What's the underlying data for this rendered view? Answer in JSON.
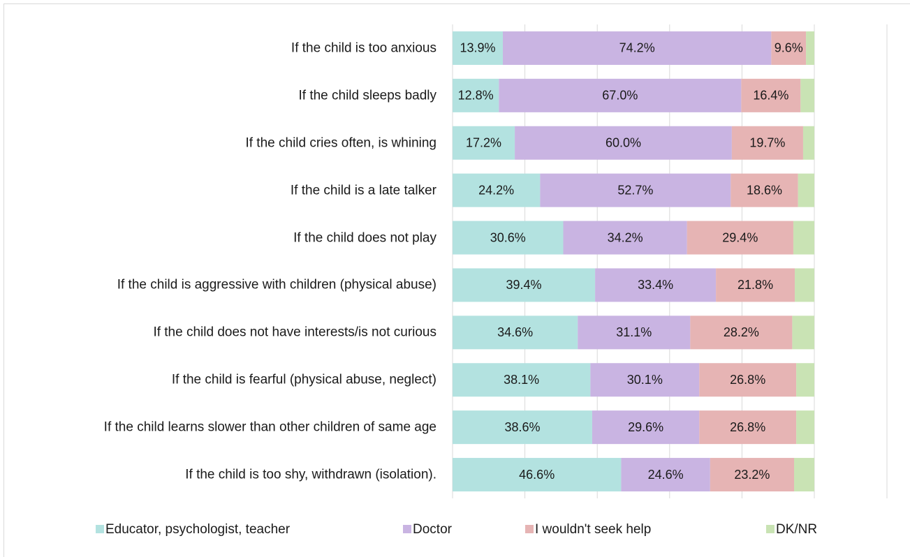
{
  "chart_data": {
    "type": "stacked-bar-horizontal",
    "categories": [
      "If the child is too anxious",
      "If the child sleeps badly",
      "If the child cries often, is whining",
      "If the child is a late talker",
      "If the child does not play",
      "If the child is aggressive with children (physical abuse)",
      "If the child does not have interests/is not curious",
      "If the child is fearful (physical abuse, neglect)",
      "If the child learns slower than other children of same age",
      "If the child is too shy, withdrawn (isolation)."
    ],
    "series": [
      {
        "name": "Educator, psychologist, teacher",
        "color": "#b3e2e0",
        "values": [
          13.9,
          12.8,
          17.2,
          24.2,
          30.6,
          39.4,
          34.6,
          38.1,
          38.6,
          46.6
        ],
        "value_labels": [
          "13.9%",
          "12.8%",
          "17.2%",
          "24.2%",
          "30.6%",
          "39.4%",
          "34.6%",
          "38.1%",
          "38.6%",
          "46.6%"
        ]
      },
      {
        "name": "Doctor",
        "color": "#c9b4e2",
        "values": [
          74.2,
          67.0,
          60.0,
          52.7,
          34.2,
          33.4,
          31.1,
          30.1,
          29.6,
          24.6
        ],
        "value_labels": [
          "74.2%",
          "67.0%",
          "60.0%",
          "52.7%",
          "34.2%",
          "33.4%",
          "31.1%",
          "30.1%",
          "29.6%",
          "24.6%"
        ]
      },
      {
        "name": "I wouldn't seek help",
        "color": "#e6b4b4",
        "values": [
          9.6,
          16.4,
          19.7,
          18.6,
          29.4,
          21.8,
          28.2,
          26.8,
          26.8,
          23.2
        ],
        "value_labels": [
          "9.6%",
          "16.4%",
          "19.7%",
          "18.6%",
          "29.4%",
          "21.8%",
          "28.2%",
          "26.8%",
          "26.8%",
          "23.2%"
        ]
      },
      {
        "name": "DK/NR",
        "color": "#c9e3b4",
        "values": [
          2.3,
          3.8,
          3.1,
          4.5,
          5.8,
          5.4,
          6.1,
          5.0,
          5.0,
          5.6
        ]
      }
    ],
    "xlim": [
      0,
      100
    ],
    "xticks": [
      0,
      20,
      40,
      60,
      80,
      100
    ],
    "grid": true,
    "legend": "bottom"
  }
}
